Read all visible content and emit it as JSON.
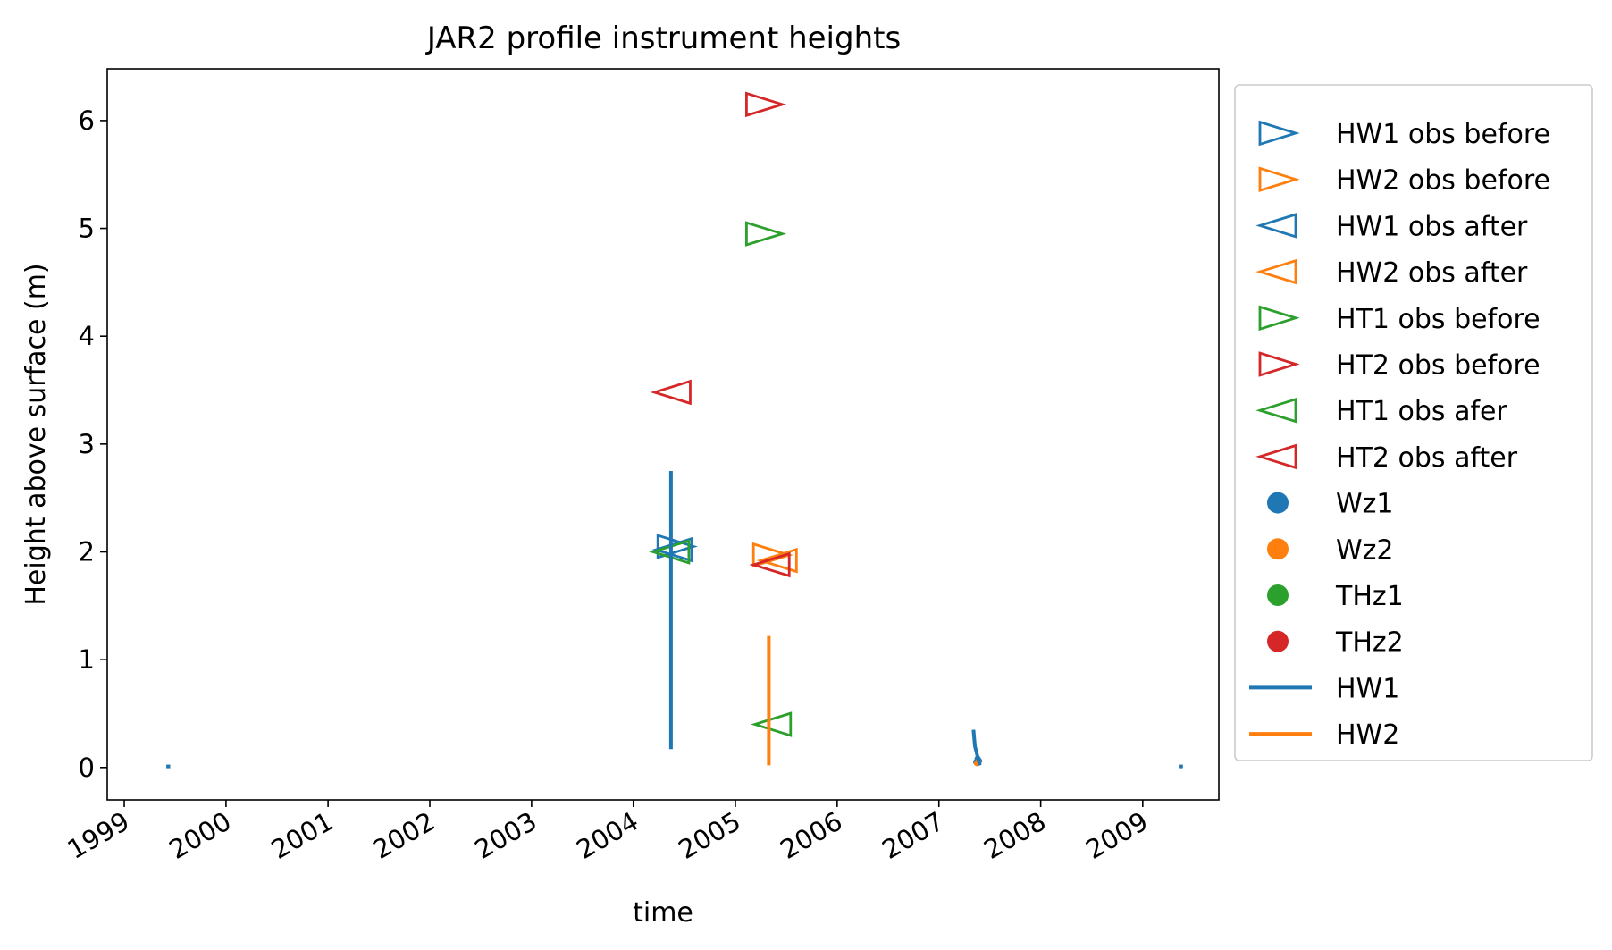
{
  "chart_data": {
    "type": "scatter",
    "title": "JAR2 profile instrument heights",
    "xlabel": "time",
    "ylabel": "Height above surface (m)",
    "x_range": [
      "1998-11-01",
      "2009-10-01"
    ],
    "ylim": [
      -0.3,
      6.48
    ],
    "xticks": [
      "1999",
      "2000",
      "2001",
      "2002",
      "2003",
      "2004",
      "2005",
      "2006",
      "2007",
      "2008",
      "2009"
    ],
    "yticks": [
      0,
      1,
      2,
      3,
      4,
      5,
      6
    ],
    "grid": false,
    "legend_position": "outside-right",
    "colors": {
      "blue": "#1f77b4",
      "orange": "#ff7f0e",
      "green": "#2ca02c",
      "red": "#d62728"
    },
    "series": [
      {
        "name": "HW1 obs before",
        "marker": "triangle-right",
        "color": "#1f77b4",
        "points": [
          {
            "x": "2004-06-01",
            "y": 2.05
          }
        ]
      },
      {
        "name": "HW2 obs before",
        "marker": "triangle-right",
        "color": "#ff7f0e",
        "points": [
          {
            "x": "2005-05-10",
            "y": 1.97
          }
        ]
      },
      {
        "name": "HW1 obs after",
        "marker": "triangle-left",
        "color": "#1f77b4",
        "points": [
          {
            "x": "2004-05-25",
            "y": 2.02
          }
        ]
      },
      {
        "name": "HW2 obs after",
        "marker": "triangle-left",
        "color": "#ff7f0e",
        "points": [
          {
            "x": "2005-06-05",
            "y": 1.92
          }
        ]
      },
      {
        "name": "HT1 obs before",
        "marker": "triangle-right",
        "color": "#2ca02c",
        "points": [
          {
            "x": "2005-04-15",
            "y": 4.95
          }
        ]
      },
      {
        "name": "HT2 obs before",
        "marker": "triangle-right",
        "color": "#d62728",
        "points": [
          {
            "x": "2005-04-15",
            "y": 6.15
          }
        ]
      },
      {
        "name": "HT1 obs afer",
        "marker": "triangle-left",
        "color": "#2ca02c",
        "points": [
          {
            "x": "2004-05-15",
            "y": 2.0
          },
          {
            "x": "2005-05-15",
            "y": 0.4
          }
        ]
      },
      {
        "name": "HT2 obs after",
        "marker": "triangle-left",
        "color": "#d62728",
        "points": [
          {
            "x": "2004-05-20",
            "y": 3.48
          },
          {
            "x": "2005-05-10",
            "y": 1.88
          }
        ]
      },
      {
        "name": "Wz1",
        "marker": "circle",
        "color": "#1f77b4",
        "points": [
          {
            "x": "2007-05-15",
            "y": 0.05
          },
          {
            "x": "2007-05-20",
            "y": 0.08
          },
          {
            "x": "2007-05-25",
            "y": 0.06
          }
        ]
      },
      {
        "name": "Wz2",
        "marker": "circle",
        "color": "#ff7f0e",
        "points": [
          {
            "x": "2007-05-18",
            "y": 0.04
          },
          {
            "x": "2007-05-22",
            "y": 0.05
          }
        ]
      },
      {
        "name": "THz1",
        "marker": "circle",
        "color": "#2ca02c",
        "points": []
      },
      {
        "name": "THz2",
        "marker": "circle",
        "color": "#d62728",
        "points": []
      },
      {
        "name": "HW1",
        "marker": "line",
        "color": "#1f77b4",
        "segments": [
          [
            {
              "x": "1999-06-01",
              "y": 0.01
            },
            {
              "x": "1999-06-15",
              "y": 0.01
            }
          ],
          [
            {
              "x": "2004-05-15",
              "y": 0.17
            },
            {
              "x": "2004-05-15",
              "y": 2.75
            }
          ],
          [
            {
              "x": "2007-05-05",
              "y": 0.35
            },
            {
              "x": "2007-05-10",
              "y": 0.2
            },
            {
              "x": "2007-05-15",
              "y": 0.15
            },
            {
              "x": "2007-05-22",
              "y": 0.08
            },
            {
              "x": "2007-05-28",
              "y": 0.02
            }
          ],
          [
            {
              "x": "2009-05-10",
              "y": 0.01
            },
            {
              "x": "2009-05-25",
              "y": 0.01
            }
          ]
        ]
      },
      {
        "name": "HW2",
        "marker": "line",
        "color": "#ff7f0e",
        "segments": [
          [
            {
              "x": "2005-05-01",
              "y": 0.02
            },
            {
              "x": "2005-05-01",
              "y": 1.22
            }
          ]
        ]
      }
    ]
  }
}
